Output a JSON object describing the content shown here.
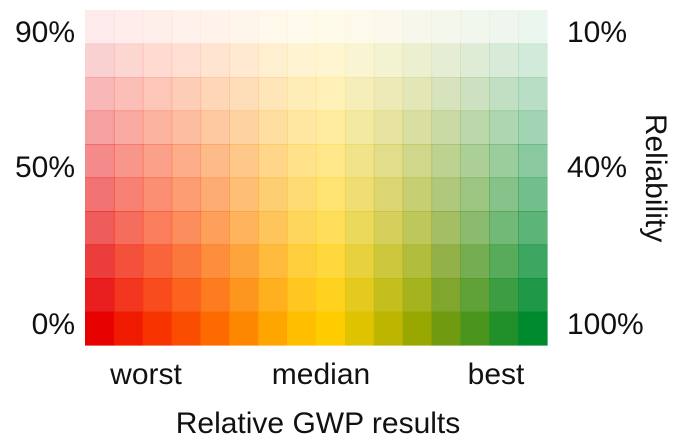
{
  "chart_data": {
    "type": "heatmap",
    "title": "",
    "xlabel": "Relative GWP results",
    "ylabel_right": "Reliability",
    "x_tick_labels": [
      "worst",
      "median",
      "best"
    ],
    "y_tick_labels_left": [
      "90%",
      "50%",
      "0%"
    ],
    "y_tick_labels_right": [
      "10%",
      "40%",
      "100%"
    ],
    "rows": 10,
    "columns": 16,
    "row_opacity_bottom_to_top": [
      1.0,
      0.88,
      0.76,
      0.64,
      0.55,
      0.46,
      0.37,
      0.28,
      0.18,
      0.08
    ],
    "colors": {
      "worst": "#e60000",
      "median": "#ffcc00",
      "best": "#008a2e"
    },
    "column_colors": [
      "#e60000",
      "#f01a00",
      "#f73300",
      "#fa4d00",
      "#fc6a00",
      "#fd8800",
      "#fea500",
      "#ffbf00",
      "#ffcc00",
      "#e0c300",
      "#bdb500",
      "#99a800",
      "#709a10",
      "#4a951c",
      "#229028",
      "#008a2e"
    ],
    "grid": false
  }
}
